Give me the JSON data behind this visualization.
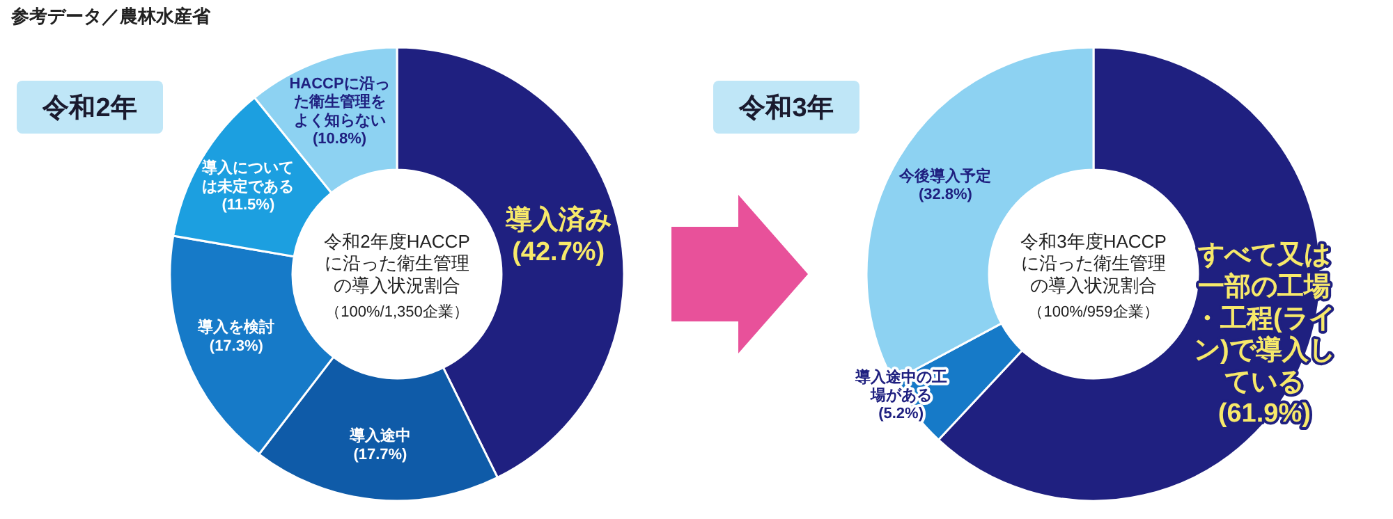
{
  "chart_data": [
    {
      "type": "donut",
      "title": "令和2年",
      "categories": [
        "導入済み",
        "導入途中",
        "導入を検討",
        "導入については未定である",
        "HACCPに沿った衛生管理をよく知らない"
      ],
      "values": [
        42.7,
        17.7,
        17.3,
        11.5,
        10.8
      ],
      "value_labels": [
        "(42.7%)",
        "(17.7%)",
        "(17.3%)",
        "(11.5%)",
        "(10.8%)"
      ],
      "colors": [
        "#1f2080",
        "#0f5ba8",
        "#167ac8",
        "#1c9fe0",
        "#8dd2f2"
      ],
      "annotations": [
        "参考データ／農林水産省",
        "令和2年度HACCPに沿った衛生管理の導入状況割合",
        "（100%/1,350企業）"
      ]
    },
    {
      "type": "donut",
      "title": "令和3年",
      "categories": [
        "すべて又は一部の工場・工程(ライン)で導入している",
        "導入途中の工場がある",
        "今後導入予定"
      ],
      "values": [
        61.9,
        5.2,
        32.8
      ],
      "value_labels": [
        "(61.9%)",
        "(5.2%)",
        "(32.8%)"
      ],
      "colors": [
        "#1f2080",
        "#167ac8",
        "#8dd2f2"
      ],
      "annotations": [
        "令和3年度HACCPに沿った衛生管理の導入状況割合",
        "（100%/959企業）"
      ]
    }
  ]
}
